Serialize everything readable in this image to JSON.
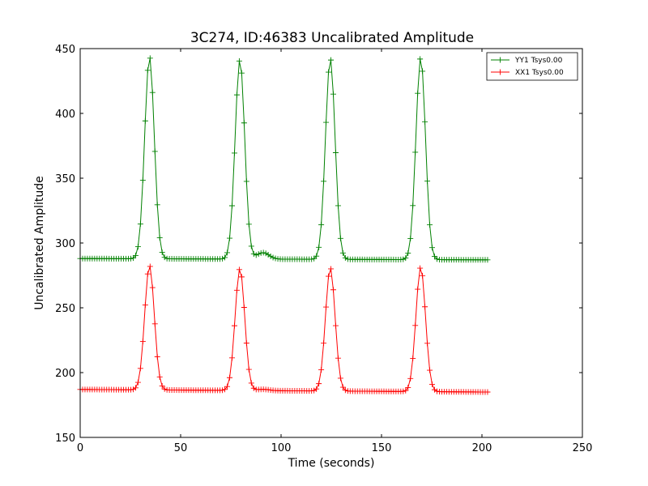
{
  "chart_data": {
    "type": "line",
    "title": "3C274, ID:46383 Uncalibrated Amplitude",
    "xlabel": "Time (seconds)",
    "ylabel": "Uncalibrated Amplitude",
    "xlim": [
      0,
      250
    ],
    "ylim": [
      150,
      450
    ],
    "xticks": [
      0,
      50,
      100,
      150,
      200,
      250
    ],
    "yticks": [
      150,
      200,
      250,
      300,
      350,
      400,
      450
    ],
    "grid": false,
    "legend": "top-right",
    "peak_times": [
      34.5,
      79.5,
      124.5,
      169.5
    ],
    "bump_time": 91,
    "sample_interval": 1.2,
    "x_start": 0,
    "x_end": 203,
    "series": [
      {
        "name": "YY1 Tsys0.00",
        "color": "#008000",
        "baseline": 288,
        "baseline_end": 287,
        "peak_values": [
          444,
          442,
          443,
          444
        ],
        "bump_value": 293
      },
      {
        "name": "XX1 Tsys0.00",
        "color": "#ff0000",
        "baseline": 187,
        "baseline_end": 185,
        "peak_values": [
          283,
          281,
          282,
          283
        ],
        "bump_value": 188
      }
    ]
  }
}
